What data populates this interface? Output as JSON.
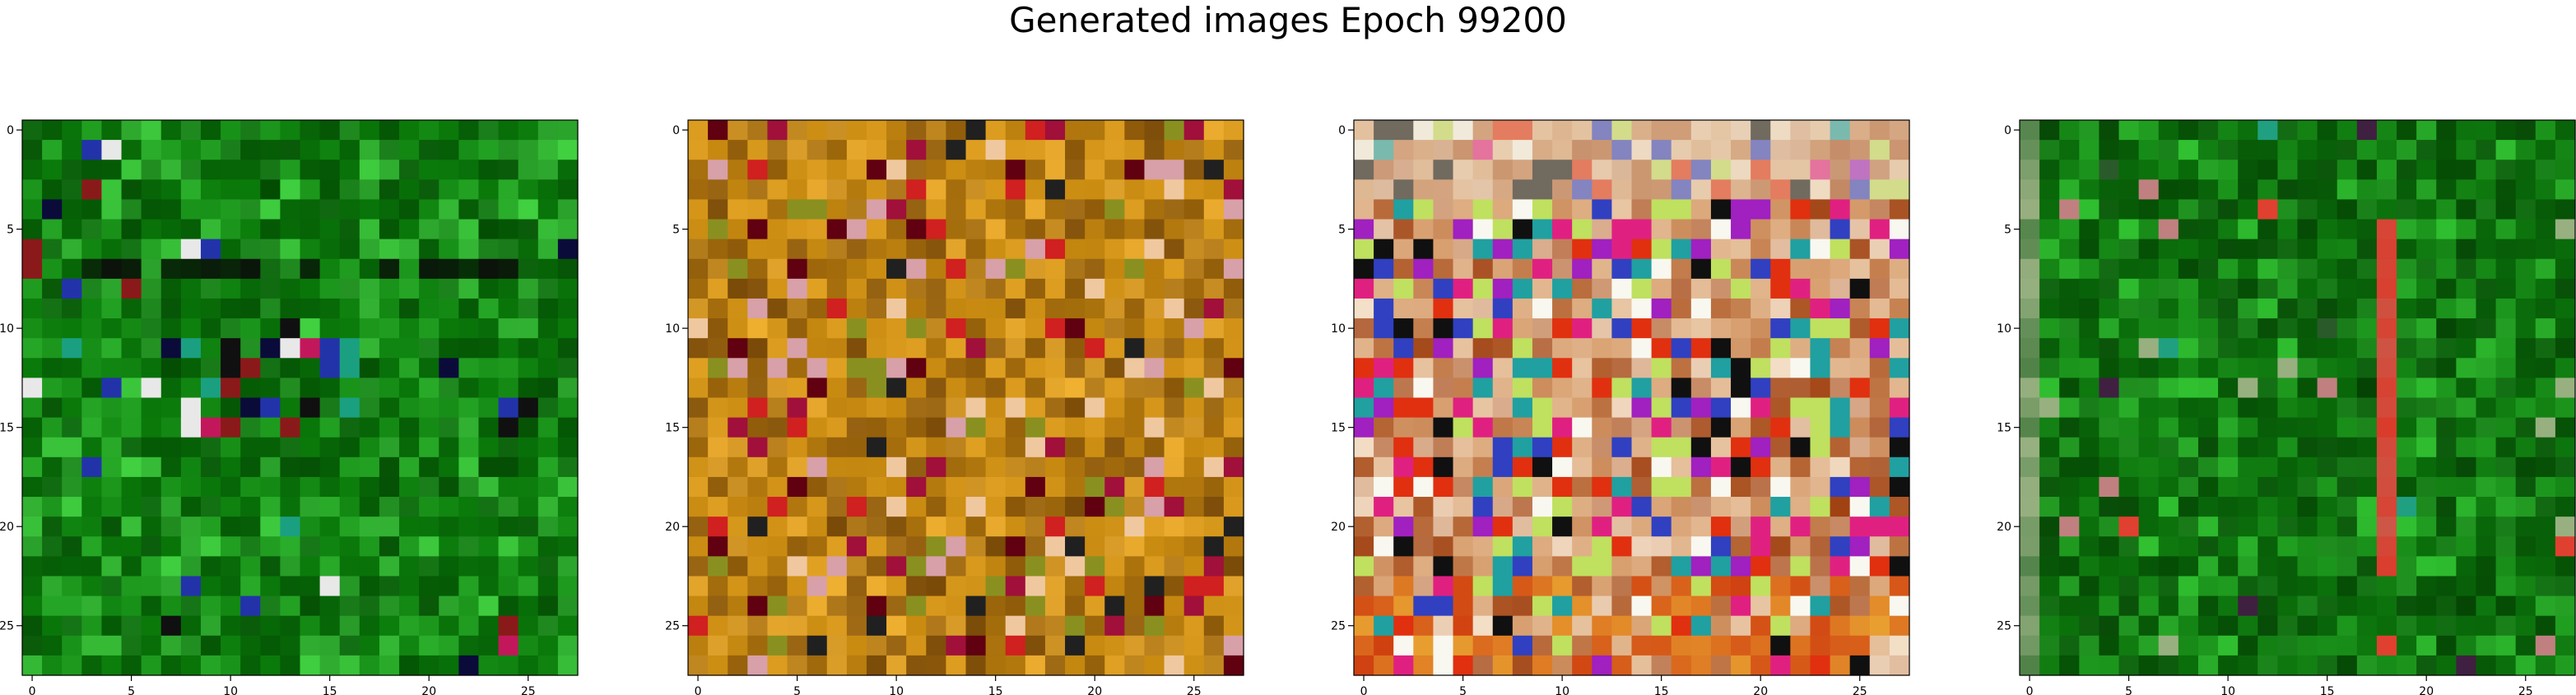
{
  "figure": {
    "title": "Generated images Epoch 99200"
  },
  "chart_data": [
    {
      "type": "heatmap",
      "xlim": [
        -0.5,
        27.5
      ],
      "ylim": [
        27.5,
        -0.5
      ],
      "xticks": [
        0,
        5,
        10,
        15,
        20,
        25
      ],
      "yticks": [
        0,
        5,
        10,
        15,
        20,
        25
      ],
      "grid": false,
      "palette": {
        "dominant": "#0a7a0a",
        "dark": "#034d03",
        "highlight": "#40d040",
        "accents": [
          "#0b0b3a",
          "#e8e8e8",
          "#c2185b",
          "#2233aa",
          "#8a1a1a",
          "#1aa080",
          "#101010"
        ]
      },
      "pattern": "green noise with a dark band near row 7 and bright accents near rows 11-15"
    },
    {
      "type": "heatmap",
      "xlim": [
        -0.5,
        27.5
      ],
      "ylim": [
        27.5,
        -0.5
      ],
      "xticks": [
        0,
        5,
        10,
        15,
        20,
        25
      ],
      "yticks": [
        0,
        5,
        10,
        15,
        20,
        25
      ],
      "grid": false,
      "palette": {
        "dominant": "#c88a10",
        "dark": "#7a4a08",
        "highlight": "#f0b030",
        "accents": [
          "#a0103a",
          "#d02020",
          "#f0c8a0",
          "#202020",
          "#8a9020",
          "#d8a0a8",
          "#600010"
        ]
      },
      "pattern": "orange/gold noise with deep red and dark accents"
    },
    {
      "type": "heatmap",
      "xlim": [
        -0.5,
        27.5
      ],
      "ylim": [
        27.5,
        -0.5
      ],
      "xticks": [
        0,
        5,
        10,
        15,
        20,
        25
      ],
      "yticks": [
        0,
        5,
        10,
        15,
        20,
        25
      ],
      "grid": false,
      "palette": {
        "dominant": "#d8a070",
        "dark": "#a04010",
        "highlight": "#f4e0c8",
        "accents": [
          "#a020c0",
          "#e02080",
          "#3040c0",
          "#c0e060",
          "#20a0a0",
          "#101010",
          "#e03010",
          "#f8f8f0"
        ]
      },
      "pattern": "multicolored noise, pastel top, warm red/orange bottom rows"
    },
    {
      "type": "heatmap",
      "xlim": [
        -0.5,
        27.5
      ],
      "ylim": [
        27.5,
        -0.5
      ],
      "xticks": [
        0,
        5,
        10,
        15,
        20,
        25
      ],
      "yticks": [
        0,
        5,
        10,
        15,
        20,
        25
      ],
      "grid": false,
      "palette": {
        "dominant": "#0a6e0a",
        "dark": "#044204",
        "highlight": "#30c030",
        "accents": [
          "#e04030",
          "#c08080",
          "#402040",
          "#98b080",
          "#2a5a2a",
          "#20a080"
        ]
      },
      "pattern": "green noise with a red vertical stripe near column 18 and pale left edge"
    }
  ]
}
